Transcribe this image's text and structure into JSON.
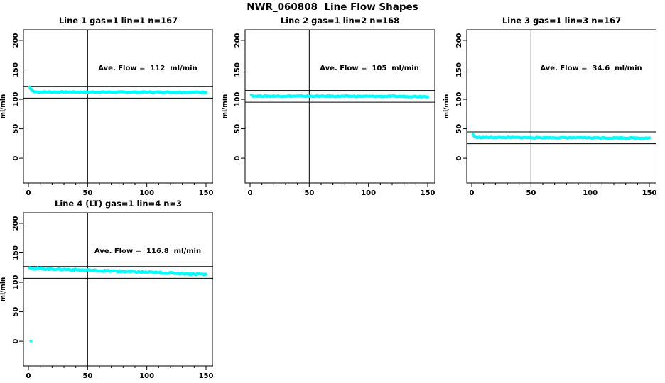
{
  "main_title": "NWR_060808  Line Flow Shapes",
  "colors": {
    "background": "#FFFFFF",
    "axis": "#000000",
    "data_point": "#00FFFF"
  },
  "chart_data": [
    {
      "type": "scatter",
      "title": "Line 1 gas=1 lin=1 n=167",
      "annotation": "Ave. Flow =  112  ml/min",
      "avg_flow": 112,
      "units": "ml/min",
      "n_points": 167,
      "ylabel": "ml/min",
      "x_ticks": [
        0,
        50,
        100,
        150
      ],
      "y_ticks": [
        0,
        50,
        100,
        150,
        200
      ],
      "x_minor_step": 10,
      "x_range": [
        -4.2,
        156
      ],
      "y_range": [
        -42,
        218
      ],
      "vline_x": 50,
      "ref_lines": [
        102,
        122
      ],
      "trace": {
        "initial": [
          [
            1,
            121
          ],
          [
            1.6,
            118.5
          ],
          [
            2.2,
            116.5
          ],
          [
            2.8,
            115
          ],
          [
            3.5,
            114
          ],
          [
            4.5,
            113.2
          ],
          [
            6,
            112.6
          ]
        ],
        "steady_start": 112.4,
        "steady_end": 112.0,
        "noise": 0.8,
        "x_end": 150,
        "samples": 160
      },
      "outliers": []
    },
    {
      "type": "scatter",
      "title": "Line 2 gas=1 lin=2 n=168",
      "annotation": "Ave. Flow =  105  ml/min",
      "avg_flow": 105,
      "units": "ml/min",
      "n_points": 168,
      "ylabel": "ml/min",
      "x_ticks": [
        0,
        50,
        100,
        150
      ],
      "y_ticks": [
        0,
        50,
        100,
        150,
        200
      ],
      "x_minor_step": 10,
      "x_range": [
        -4.2,
        156
      ],
      "y_range": [
        -42,
        218
      ],
      "vline_x": 50,
      "ref_lines": [
        95,
        115
      ],
      "trace": {
        "initial": [
          [
            1,
            106.8
          ],
          [
            2,
            106
          ]
        ],
        "steady_start": 105.4,
        "steady_end": 104.8,
        "noise": 0.9,
        "x_end": 150,
        "samples": 162
      },
      "outliers": []
    },
    {
      "type": "scatter",
      "title": "Line 3 gas=1 lin=3 n=167",
      "annotation": "Ave. Flow =  34.6  ml/min",
      "avg_flow": 34.6,
      "units": "ml/min",
      "n_points": 167,
      "ylabel": "ml/min",
      "x_ticks": [
        0,
        50,
        100,
        150
      ],
      "y_ticks": [
        0,
        50,
        100,
        150,
        200
      ],
      "x_minor_step": 10,
      "x_range": [
        -4.2,
        156
      ],
      "y_range": [
        -42,
        218
      ],
      "vline_x": 50,
      "ref_lines": [
        24.6,
        44.6
      ],
      "trace": {
        "initial": [
          [
            1,
            40
          ],
          [
            2,
            37.2
          ],
          [
            3,
            36
          ]
        ],
        "steady_start": 35.2,
        "steady_end": 34.3,
        "noise": 0.75,
        "x_end": 150,
        "samples": 160
      },
      "outliers": []
    },
    {
      "type": "scatter",
      "title": "Line 4 (LT) gas=1 lin=4 n=3",
      "annotation": "Ave. Flow =  116.8  ml/min",
      "avg_flow": 116.8,
      "units": "ml/min",
      "n_points": 3,
      "ylabel": "ml/min",
      "x_ticks": [
        0,
        50,
        100,
        150
      ],
      "y_ticks": [
        0,
        50,
        100,
        150,
        200
      ],
      "x_minor_step": 10,
      "x_range": [
        -4.2,
        156
      ],
      "y_range": [
        -42,
        218
      ],
      "vline_x": 50,
      "ref_lines": [
        106.8,
        126.8
      ],
      "trace": {
        "initial": [
          [
            1,
            124.5
          ],
          [
            2,
            124.2
          ]
        ],
        "steady_start": 123.8,
        "steady_end": 113.6,
        "noise": 1.3,
        "x_end": 150,
        "samples": 156
      },
      "outliers": [
        [
          2,
          0.5
        ]
      ]
    }
  ]
}
